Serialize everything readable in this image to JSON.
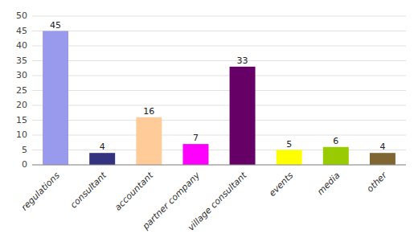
{
  "chart_data": {
    "type": "bar",
    "categories": [
      "regulations",
      "consultant",
      "accountant",
      "partner company",
      "village consultant",
      "events",
      "media",
      "other"
    ],
    "values": [
      45,
      4,
      16,
      7,
      33,
      5,
      6,
      4
    ],
    "colors": [
      "#9999ee",
      "#333380",
      "#ffcc99",
      "#ff00ff",
      "#660066",
      "#ffff00",
      "#99cc00",
      "#806633"
    ],
    "ylim": [
      0,
      50
    ],
    "yticks": [
      0,
      5,
      10,
      15,
      20,
      25,
      30,
      35,
      40,
      45,
      50
    ],
    "grid": true,
    "data_labels": true
  }
}
